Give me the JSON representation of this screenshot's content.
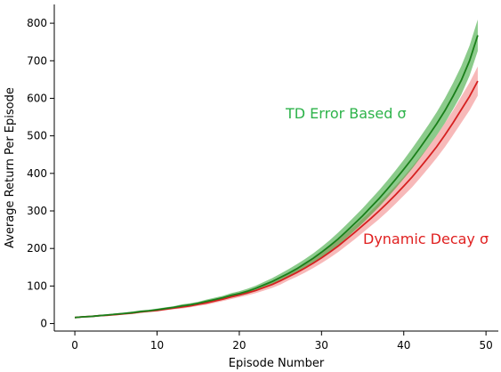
{
  "chart_data": {
    "type": "line",
    "xlabel": "Episode Number",
    "ylabel": "Average Return Per Episode",
    "xlim": [
      -2.5,
      51.5
    ],
    "ylim": [
      -20,
      850
    ],
    "xticks": [
      0,
      10,
      20,
      30,
      40,
      50
    ],
    "yticks": [
      0,
      100,
      200,
      300,
      400,
      500,
      600,
      700,
      800
    ],
    "grid": false,
    "legend": "none",
    "x": [
      0,
      1,
      2,
      3,
      4,
      5,
      6,
      7,
      8,
      9,
      10,
      11,
      12,
      13,
      14,
      15,
      16,
      17,
      18,
      19,
      20,
      21,
      22,
      23,
      24,
      25,
      26,
      27,
      28,
      29,
      30,
      31,
      32,
      33,
      34,
      35,
      36,
      37,
      38,
      39,
      40,
      41,
      42,
      43,
      44,
      45,
      46,
      47,
      48,
      49
    ],
    "series": [
      {
        "name": "TD Error Based σ",
        "color": "#1a7f1a",
        "band_color": "#2ca02c",
        "label_color": "#2db34a",
        "values": [
          16,
          18,
          19,
          21,
          23,
          25,
          27,
          29,
          32,
          34,
          37,
          40,
          43,
          47,
          50,
          54,
          59,
          64,
          69,
          75,
          80,
          86,
          94,
          103,
          112,
          123,
          134,
          146,
          160,
          174,
          190,
          207,
          225,
          245,
          266,
          287,
          310,
          333,
          358,
          384,
          411,
          439,
          469,
          500,
          532,
          567,
          606,
          648,
          700,
          768
        ],
        "band": [
          2,
          2,
          2,
          2,
          2,
          2,
          2,
          3,
          3,
          3,
          3,
          3,
          3,
          4,
          4,
          4,
          5,
          5,
          5,
          6,
          6,
          7,
          7,
          8,
          9,
          10,
          11,
          12,
          12,
          13,
          14,
          15,
          17,
          18,
          19,
          20,
          21,
          22,
          23,
          24,
          25,
          27,
          28,
          29,
          31,
          33,
          35,
          38,
          40,
          42
        ]
      },
      {
        "name": "Dynamic Decay σ",
        "color": "#d62020",
        "band_color": "#f08080",
        "label_color": "#e02020",
        "values": [
          16,
          18,
          19,
          21,
          22,
          24,
          26,
          28,
          31,
          33,
          35,
          38,
          41,
          44,
          47,
          51,
          55,
          60,
          65,
          71,
          76,
          82,
          88,
          96,
          104,
          114,
          125,
          136,
          148,
          161,
          175,
          190,
          206,
          224,
          242,
          261,
          280,
          300,
          321,
          343,
          366,
          390,
          416,
          443,
          471,
          502,
          535,
          570,
          605,
          646
        ],
        "band": [
          2,
          2,
          2,
          2,
          2,
          2,
          2,
          3,
          3,
          3,
          3,
          3,
          3,
          4,
          4,
          4,
          5,
          5,
          5,
          6,
          6,
          7,
          7,
          8,
          9,
          10,
          10,
          11,
          12,
          13,
          14,
          15,
          16,
          17,
          18,
          19,
          20,
          22,
          23,
          24,
          25,
          27,
          28,
          29,
          30,
          32,
          33,
          35,
          37,
          39
        ]
      }
    ],
    "annotations": [
      {
        "text": "TD Error Based σ",
        "series": 0
      },
      {
        "text": "Dynamic Decay σ",
        "series": 1
      }
    ]
  }
}
